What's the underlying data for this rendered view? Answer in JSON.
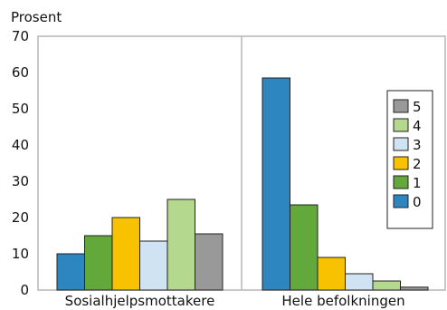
{
  "chart_data": {
    "type": "bar",
    "ylabel": "Prosent",
    "xlabel": "",
    "ylim": [
      0,
      70
    ],
    "yticks": [
      0,
      10,
      20,
      30,
      40,
      50,
      60,
      70
    ],
    "categories": [
      "Sosialhjelpsmottakere",
      "Hele befolkningen"
    ],
    "grid": "vertical separator between groups",
    "legend_position": "right",
    "series": [
      {
        "name": "0",
        "color": "#2e86c1",
        "values": [
          10,
          58.5
        ]
      },
      {
        "name": "1",
        "color": "#62a83a",
        "values": [
          15,
          23.5
        ]
      },
      {
        "name": "2",
        "color": "#f9c200",
        "values": [
          20,
          9
        ]
      },
      {
        "name": "3",
        "color": "#cfe3f3",
        "values": [
          13.5,
          4.5
        ]
      },
      {
        "name": "4",
        "color": "#b3d88e",
        "values": [
          25,
          2.5
        ]
      },
      {
        "name": "5",
        "color": "#999999",
        "values": [
          15.5,
          0.8
        ]
      }
    ]
  }
}
